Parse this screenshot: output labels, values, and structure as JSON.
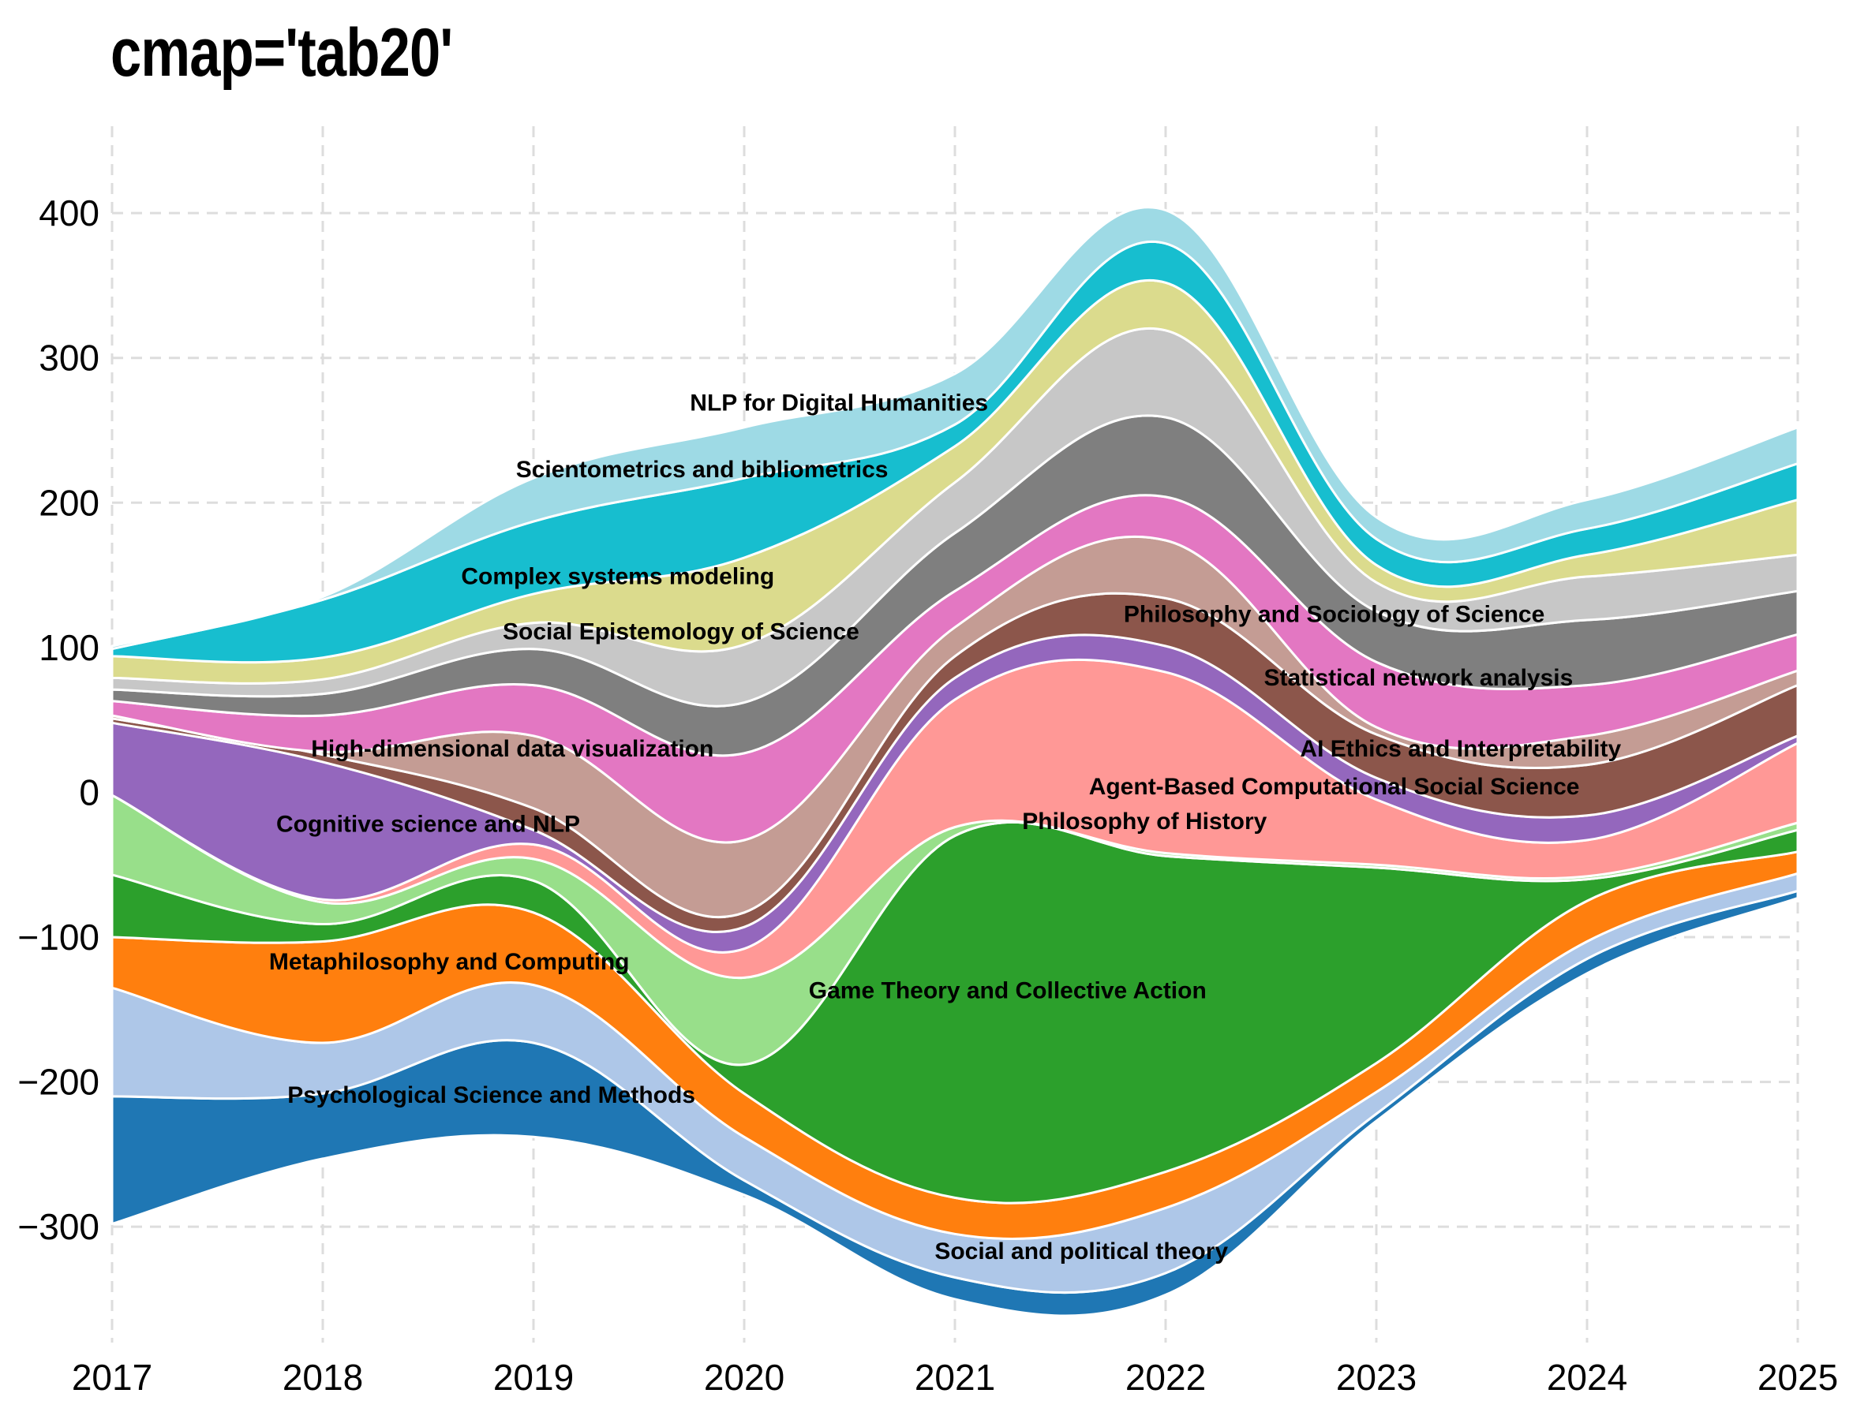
{
  "chart_data": {
    "type": "area",
    "subtype": "streamgraph",
    "title": "cmap='tab20'",
    "xlabel": "",
    "ylabel": "",
    "x": [
      2017,
      2018,
      2019,
      2020,
      2021,
      2022,
      2023,
      2024,
      2025
    ],
    "xlim": [
      2017,
      2025
    ],
    "ylim": [
      -380,
      460
    ],
    "yticks": [
      -300,
      -200,
      -100,
      0,
      100,
      200,
      300,
      400
    ],
    "grid": true,
    "legend": "none",
    "series": [
      {
        "name": "Psychological Science and Methods",
        "color": "#1f77b4",
        "values": [
          88,
          45,
          65,
          10,
          15,
          15,
          5,
          10,
          5
        ]
      },
      {
        "name": "Social and political theory",
        "color": "#aec7e8",
        "values": [
          75,
          35,
          40,
          30,
          30,
          45,
          15,
          12,
          12
        ]
      },
      {
        "name": "Metaphilosophy and Computing",
        "color": "#ff7f0e",
        "values": [
          35,
          70,
          50,
          30,
          25,
          25,
          20,
          28,
          15
        ]
      },
      {
        "name": "Game Theory and Collective Action",
        "color": "#2ca02c",
        "values": [
          43,
          12,
          22,
          20,
          250,
          218,
          135,
          15,
          15
        ]
      },
      {
        "name": "Philosophy of History",
        "color": "#98df8a",
        "values": [
          55,
          15,
          15,
          60,
          6,
          2,
          2,
          2,
          5
        ]
      },
      {
        "name": "Agent-Based Computational Social Science",
        "color": "#ff9896",
        "values": [
          0,
          2,
          10,
          20,
          88,
          125,
          45,
          25,
          55
        ]
      },
      {
        "name": "Cognitive science and NLP",
        "color": "#9467bd",
        "values": [
          50,
          95,
          10,
          15,
          15,
          18,
          15,
          17,
          5
        ]
      },
      {
        "name": "High-dimensional data visualization",
        "color": "#8c564b",
        "values": [
          3,
          5,
          15,
          10,
          15,
          33,
          30,
          35,
          35
        ]
      },
      {
        "name": "AI Ethics and Interpretability",
        "color": "#c49c94",
        "values": [
          2,
          2,
          50,
          50,
          20,
          40,
          5,
          20,
          10
        ]
      },
      {
        "name": "Statistical network analysis",
        "color": "#e377c2",
        "values": [
          10,
          25,
          35,
          60,
          25,
          30,
          45,
          35,
          25
        ]
      },
      {
        "name": "Philosophy and Sociology of Science",
        "color": "#7f7f7f",
        "values": [
          8,
          15,
          25,
          35,
          40,
          55,
          35,
          45,
          30
        ]
      },
      {
        "name": "Social Epistemology of Science",
        "color": "#c7c7c7",
        "values": [
          8,
          10,
          18,
          40,
          35,
          60,
          20,
          30,
          25
        ]
      },
      {
        "name": "Complex systems modeling",
        "color": "#dbdb8d",
        "values": [
          15,
          15,
          20,
          60,
          25,
          33,
          12,
          15,
          38
        ]
      },
      {
        "name": "Scientometrics and bibliometrics",
        "color": "#17becf",
        "values": [
          5,
          40,
          50,
          55,
          15,
          27,
          18,
          18,
          25
        ]
      },
      {
        "name": "NLP for Digital Humanities",
        "color": "#9edae5",
        "values": [
          2,
          2,
          30,
          35,
          35,
          23,
          15,
          20,
          25
        ]
      }
    ],
    "baseline": [
      -298,
      -253,
      -238,
      -278,
      -350,
      -347,
      -227,
      -125,
      -73
    ]
  }
}
